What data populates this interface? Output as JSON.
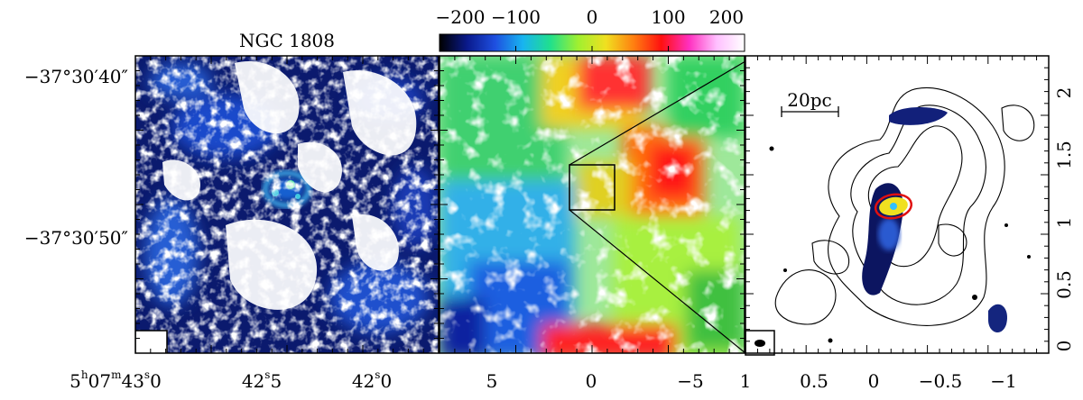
{
  "colorbar": {
    "ticks": [
      "−200",
      "−100",
      "0",
      "100",
      "200"
    ],
    "colors": [
      "#000000",
      "#0a1a8c",
      "#1e4fe0",
      "#18b4f0",
      "#20e08c",
      "#a0f030",
      "#f0e020",
      "#ff7f10",
      "#ff1010",
      "#ff30c0",
      "#ffc0ff",
      "#ffffff"
    ]
  },
  "panel_left": {
    "title": "NGC 1808",
    "dec_labels": [
      "−37°30′40″",
      "−37°30′50″"
    ],
    "ra_labels": [
      {
        "main": "5",
        "h": "h",
        "m1": "07",
        "m": "m",
        "s1": "43",
        "s": "s",
        "tail": "0"
      },
      {
        "main": "42",
        "s": "s",
        "tail": "5"
      },
      {
        "main": "42",
        "s": "s",
        "tail": "0"
      }
    ]
  },
  "panel_middle": {
    "x_labels": [
      "5",
      "0",
      "−5"
    ]
  },
  "panel_right": {
    "x_labels": [
      "1",
      "0.5",
      "0",
      "−0.5",
      "−1"
    ],
    "y_labels": [
      "0",
      "0.5",
      "1",
      "1.5",
      "2"
    ],
    "scalebar_label": "20pc"
  }
}
